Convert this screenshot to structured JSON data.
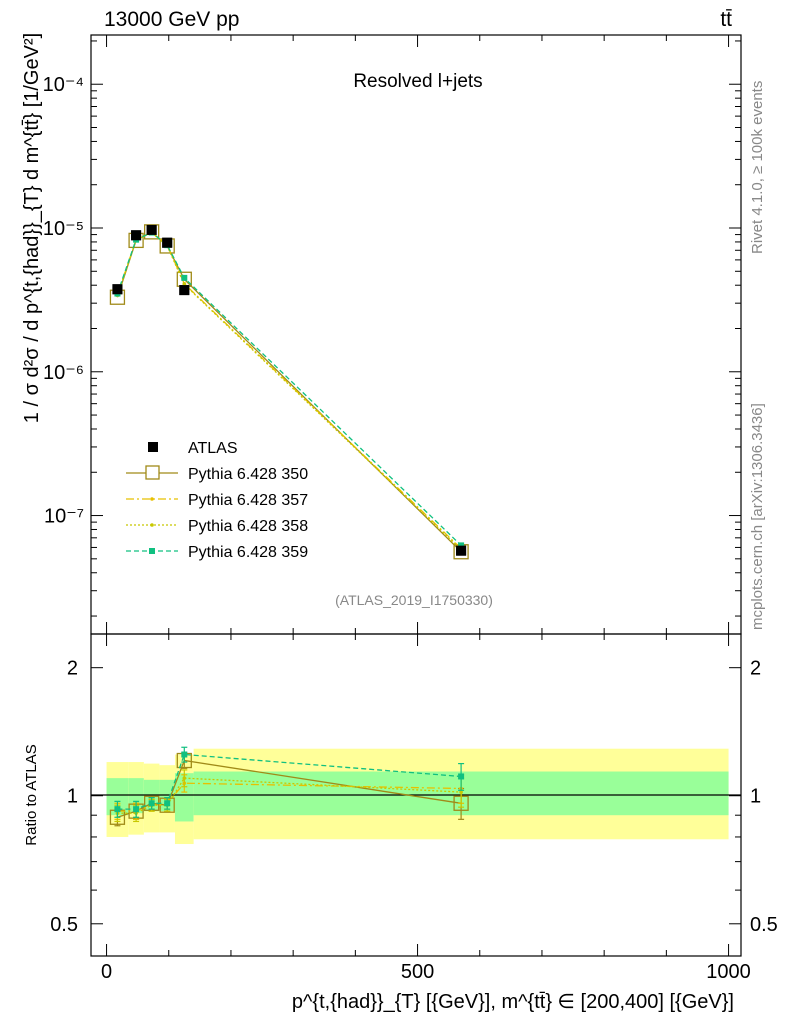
{
  "header": {
    "energy_label": "13000 GeV pp",
    "process_label": "tt̄"
  },
  "side_labels": {
    "rivet": "Rivet 4.1.0, ≥ 100k events",
    "mcplots": "mcplots.cern.ch [arXiv:1306.3436]"
  },
  "colors": {
    "atlas": "#000000",
    "p350": "#a08a18",
    "p357": "#e8c000",
    "p358": "#c8c800",
    "p359": "#10c080",
    "band_inner": "#99ff99",
    "band_outer": "#ffff99"
  },
  "chart_data": [
    {
      "type": "scatter",
      "panel": "main",
      "title": "Resolved l+jets",
      "analysis_tag": "(ATLAS_2019_I1750330)",
      "ylabel": "1 / σ d²σ / d p^{t,{had}}_{T} d m^{tt̄} [1/GeV²]",
      "yscale": "log",
      "xlim": [
        -25,
        1020
      ],
      "ylim": [
        1.5e-08,
        0.00022
      ],
      "y_ticks": [
        {
          "value": 1e-07,
          "label": "10⁻⁷"
        },
        {
          "value": 1e-06,
          "label": "10⁻⁶"
        },
        {
          "value": 1e-05,
          "label": "10⁻⁵"
        },
        {
          "value": 0.0001,
          "label": "10⁻⁴"
        }
      ],
      "x": [
        17.5,
        47.5,
        72.5,
        97.5,
        125,
        570
      ],
      "series": [
        {
          "name": "ATLAS",
          "style": "data",
          "values": [
            3.75e-06,
            8.9e-06,
            9.7e-06,
            7.9e-06,
            3.7e-06,
            5.7e-08
          ]
        },
        {
          "name": "Pythia 6.428 350",
          "style": "open-square-solid",
          "values": [
            3.3e-06,
            8.2e-06,
            9.4e-06,
            7.5e-06,
            4.4e-06,
            5.6e-08
          ]
        },
        {
          "name": "Pythia 6.428 357",
          "style": "dash-dot",
          "values": [
            3.45e-06,
            8.3e-06,
            9.3e-06,
            7.6e-06,
            4.1e-06,
            5.9e-08
          ]
        },
        {
          "name": "Pythia 6.428 358",
          "style": "dotted",
          "values": [
            3.4e-06,
            8.25e-06,
            9.3e-06,
            7.5e-06,
            4.05e-06,
            5.8e-08
          ]
        },
        {
          "name": "Pythia 6.428 359",
          "style": "dashed-filled-square",
          "values": [
            3.5e-06,
            8.3e-06,
            9.3e-06,
            7.6e-06,
            4.5e-06,
            6.2e-08
          ]
        }
      ]
    },
    {
      "type": "scatter",
      "panel": "ratio",
      "ylabel": "Ratio to ATLAS",
      "xlabel": "p^{t,{had}}_{T} [{GeV}], m^{tt̄} ∈ [200,400] [{GeV}]",
      "yscale": "log",
      "xlim": [
        -25,
        1020
      ],
      "ylim": [
        0.42,
        2.4
      ],
      "y_ticks": [
        {
          "value": 0.5,
          "label": "0.5"
        },
        {
          "value": 1,
          "label": "1"
        },
        {
          "value": 2,
          "label": "2"
        }
      ],
      "x_ticks": [
        {
          "value": 0,
          "label": "0"
        },
        {
          "value": 500,
          "label": "500"
        },
        {
          "value": 1000,
          "label": "1000"
        }
      ],
      "bin_edges": [
        0,
        35,
        60,
        85,
        110,
        140,
        1000
      ],
      "band_inner": [
        [
          0.9,
          1.1
        ],
        [
          0.91,
          1.1
        ],
        [
          0.92,
          1.09
        ],
        [
          0.92,
          1.09
        ],
        [
          0.87,
          1.13
        ],
        [
          0.9,
          1.14
        ]
      ],
      "band_outer": [
        [
          0.8,
          1.2
        ],
        [
          0.81,
          1.2
        ],
        [
          0.82,
          1.19
        ],
        [
          0.82,
          1.18
        ],
        [
          0.77,
          1.25
        ],
        [
          0.79,
          1.29
        ]
      ],
      "x": [
        17.5,
        47.5,
        72.5,
        97.5,
        125,
        570
      ],
      "series": [
        {
          "name": "Pythia 6.428 350",
          "style": "open-square-solid",
          "values": [
            0.89,
            0.92,
            0.96,
            0.95,
            1.21,
            0.96
          ],
          "err": [
            0.04,
            0.04,
            0.03,
            0.03,
            0.05,
            0.08
          ]
        },
        {
          "name": "Pythia 6.428 357",
          "style": "dash-dot",
          "values": [
            0.92,
            0.92,
            0.95,
            0.96,
            1.07,
            1.04
          ],
          "err": [
            0.04,
            0.04,
            0.03,
            0.03,
            0.05,
            0.08
          ]
        },
        {
          "name": "Pythia 6.428 358",
          "style": "dotted",
          "values": [
            0.91,
            0.91,
            0.95,
            0.95,
            1.1,
            1.02
          ],
          "err": [
            0.04,
            0.04,
            0.03,
            0.03,
            0.05,
            0.08
          ]
        },
        {
          "name": "Pythia 6.428 359",
          "style": "dashed-filled-square",
          "values": [
            0.93,
            0.93,
            0.96,
            0.96,
            1.25,
            1.11
          ],
          "err": [
            0.04,
            0.04,
            0.03,
            0.03,
            0.05,
            0.08
          ]
        }
      ]
    }
  ]
}
